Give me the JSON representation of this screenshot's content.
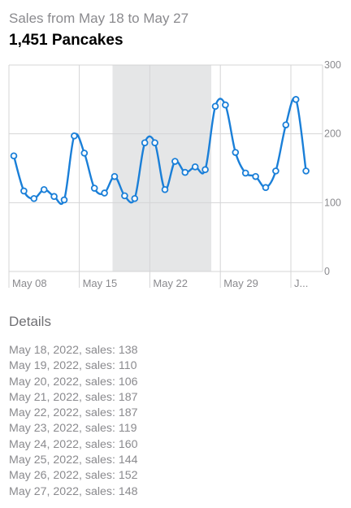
{
  "header": {
    "subtitle": "Sales from May 18 to May 27",
    "title": "1,451 Pancakes"
  },
  "details": {
    "heading": "Details",
    "items": [
      "May 18, 2022, sales: 138",
      "May 19, 2022, sales: 110",
      "May 20, 2022, sales: 106",
      "May 21, 2022, sales: 187",
      "May 22, 2022, sales: 187",
      "May 23, 2022, sales: 119",
      "May 24, 2022, sales: 160",
      "May 25, 2022, sales: 144",
      "May 26, 2022, sales: 152",
      "May 27, 2022, sales: 148"
    ]
  },
  "colors": {
    "line": "#1a7fd8",
    "selection": "#e5e6e7",
    "grid": "#d4d4d6"
  },
  "chart_data": {
    "type": "line",
    "title": "",
    "xlabel": "",
    "ylabel": "",
    "ylim": [
      0,
      300
    ],
    "yticks": [
      0,
      100,
      200,
      300
    ],
    "x_tick_labels": [
      "May 08",
      "May 15",
      "May 22",
      "May 29",
      "J..."
    ],
    "selected_range": [
      "2022-05-18",
      "2022-05-27"
    ],
    "grid": true,
    "series": [
      {
        "x": [
          "2022-05-08",
          "2022-05-09",
          "2022-05-10",
          "2022-05-11",
          "2022-05-12",
          "2022-05-13",
          "2022-05-14",
          "2022-05-15",
          "2022-05-16",
          "2022-05-17",
          "2022-05-18",
          "2022-05-19",
          "2022-05-20",
          "2022-05-21",
          "2022-05-22",
          "2022-05-23",
          "2022-05-24",
          "2022-05-25",
          "2022-05-26",
          "2022-05-27",
          "2022-05-28",
          "2022-05-29",
          "2022-05-30",
          "2022-05-31",
          "2022-06-01",
          "2022-06-02",
          "2022-06-03",
          "2022-06-04",
          "2022-06-05",
          "2022-06-06",
          "2022-06-07"
        ],
        "values": [
          168,
          117,
          106,
          119,
          109,
          104,
          197,
          172,
          121,
          114,
          138,
          110,
          106,
          187,
          187,
          119,
          160,
          144,
          152,
          148,
          240,
          242,
          173,
          143,
          138,
          122,
          146,
          213,
          250,
          146,
          146
        ]
      }
    ]
  }
}
